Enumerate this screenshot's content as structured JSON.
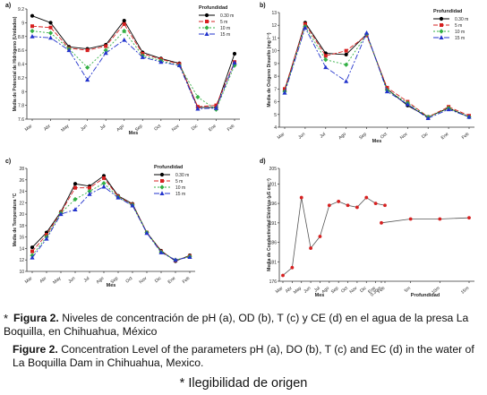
{
  "figure": {
    "caption_es": {
      "marker": "*",
      "label": "Figura 2.",
      "text": "Niveles de concentración de pH (a), OD (b), T (c) y CE (d) en el agua de la presa La Boquilla, en Chihuahua, México"
    },
    "caption_en": {
      "label": "Figure 2.",
      "text": "Concentration Level of the parameters pH (a), DO (b), T (c) and EC (d) in the water of La Boquilla Dam in Chihuahua, Mexico."
    },
    "note": "* Ilegibilidad de origen"
  },
  "colors": {
    "s0": "#000000",
    "s1": "#d62020",
    "s2": "#33b044",
    "s3": "#2233cc",
    "d": "#d62020"
  },
  "chart_data": [
    {
      "panel": "a)",
      "type": "line",
      "ylabel": "Media de Potencial de Hidrógeno (Unidades)",
      "xlabel": "Mes",
      "ylim": [
        7.6,
        9.2
      ],
      "yticks": [
        7.6,
        7.8,
        8.0,
        8.2,
        8.4,
        8.6,
        8.8,
        9.0,
        9.2
      ],
      "categories": [
        "Mar",
        "Abr",
        "May",
        "Jun",
        "Jul",
        "Ago",
        "Sep",
        "Oct",
        "Nov",
        "Dic",
        "Ene",
        "Feb"
      ],
      "legend_title": "Profundidad",
      "legend_position": "top-right",
      "series": [
        {
          "name": "0.30 m",
          "values": [
            9.1,
            9.0,
            8.65,
            8.62,
            8.68,
            9.03,
            8.57,
            8.48,
            8.41,
            7.77,
            7.77,
            8.55
          ]
        },
        {
          "name": "5 m",
          "values": [
            8.95,
            8.93,
            8.63,
            8.6,
            8.66,
            8.98,
            8.55,
            8.47,
            8.4,
            7.78,
            7.8,
            8.43
          ]
        },
        {
          "name": "10 m",
          "values": [
            8.88,
            8.85,
            8.62,
            8.35,
            8.6,
            8.88,
            8.52,
            8.45,
            8.38,
            7.92,
            7.74,
            8.38
          ]
        },
        {
          "name": "15 m",
          "values": [
            8.8,
            8.78,
            8.6,
            8.17,
            8.56,
            8.75,
            8.5,
            8.43,
            8.38,
            7.75,
            7.76,
            8.42
          ]
        }
      ]
    },
    {
      "panel": "b)",
      "type": "line",
      "ylabel": "Media de Oxígeno Disuelto (mg l⁻¹)",
      "xlabel": "Mes",
      "ylim": [
        4,
        13
      ],
      "yticks": [
        4,
        5,
        6,
        7,
        8,
        9,
        10,
        11,
        12,
        13
      ],
      "categories": [
        "Mar",
        "Jun",
        "Jul",
        "Ago",
        "Sep",
        "Oct",
        "Nov",
        "Dic",
        "Ene",
        "Feb"
      ],
      "legend_title": "Profundidad",
      "legend_position": "top-right",
      "series": [
        {
          "name": "0.30 m",
          "values": [
            6.9,
            12.2,
            9.8,
            9.7,
            11.3,
            7.0,
            5.7,
            4.8,
            5.5,
            4.8
          ]
        },
        {
          "name": "5 m",
          "values": [
            7.0,
            12.1,
            9.6,
            10.0,
            11.2,
            7.1,
            6.0,
            4.8,
            5.6,
            4.9
          ]
        },
        {
          "name": "10 m",
          "values": [
            6.8,
            11.9,
            9.3,
            8.9,
            11.3,
            6.9,
            5.9,
            4.8,
            5.5,
            4.8
          ]
        },
        {
          "name": "15 m",
          "values": [
            6.7,
            11.8,
            8.7,
            7.6,
            11.4,
            6.8,
            5.8,
            4.7,
            5.4,
            4.8
          ]
        }
      ]
    },
    {
      "panel": "c)",
      "type": "line",
      "ylabel": "Media de Temperatura °C",
      "xlabel": "Mes",
      "ylim": [
        10,
        28
      ],
      "yticks": [
        10,
        12,
        14,
        16,
        18,
        20,
        22,
        24,
        26,
        28
      ],
      "categories": [
        "Mar",
        "Abr",
        "May",
        "Jun",
        "Jul",
        "Ago",
        "Sep",
        "Oct",
        "Nov",
        "Dic",
        "Ene",
        "Feb"
      ],
      "legend_title": "Profundidad",
      "legend_position": "top-right",
      "series": [
        {
          "name": "0.30 m",
          "values": [
            14.2,
            16.8,
            20.4,
            25.3,
            24.9,
            26.7,
            23.2,
            21.8,
            16.8,
            13.6,
            11.8,
            12.8
          ]
        },
        {
          "name": "5 m",
          "values": [
            13.5,
            16.4,
            20.3,
            24.6,
            24.6,
            26.3,
            23.1,
            21.7,
            16.8,
            13.5,
            11.9,
            12.7
          ]
        },
        {
          "name": "10 m",
          "values": [
            12.8,
            16.0,
            20.2,
            22.6,
            24.0,
            25.4,
            23.0,
            21.6,
            16.8,
            13.4,
            12.0,
            12.6
          ]
        },
        {
          "name": "15 m",
          "values": [
            12.4,
            15.7,
            20.0,
            20.8,
            23.5,
            24.8,
            22.9,
            21.5,
            16.7,
            13.3,
            12.0,
            12.5
          ]
        }
      ]
    },
    {
      "panel": "d)",
      "type": "line",
      "ylabel": "Media de Conductividad Eléctrica (µS cm⁻¹)",
      "xlabel_month": "Mes",
      "xlabel_depth": "Profundidad",
      "ylim": [
        176,
        205
      ],
      "yticks": [
        176,
        181,
        186,
        191,
        196,
        201,
        205
      ],
      "month_categories": [
        "Mar",
        "Abr",
        "May",
        "Jun",
        "Jul",
        "Ago",
        "Sep",
        "Oct",
        "Nov",
        "Dic",
        "Ene",
        "Feb"
      ],
      "month_values": [
        177.5,
        179.5,
        197.5,
        184.5,
        187.5,
        195.5,
        196.5,
        195.5,
        195.0,
        197.5,
        196.0,
        195.5
      ],
      "depth_categories": [
        "0.30m",
        "5m",
        "10m",
        "15m"
      ],
      "depth_values": [
        191.0,
        192.0,
        192.0,
        192.3
      ]
    }
  ]
}
